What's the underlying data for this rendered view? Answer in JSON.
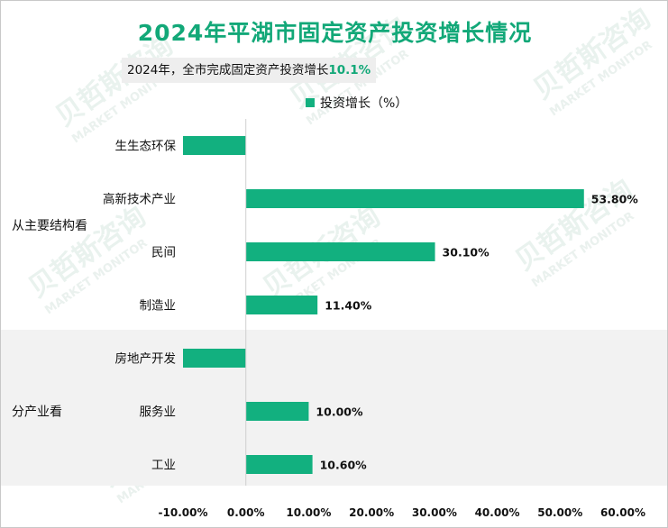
{
  "title": "2024年平湖市固定资产投资增长情况",
  "subtitle_prefix": "2024年，全市完成固定资产投资增长",
  "subtitle_value": "10.1%",
  "watermark": "贝哲斯咨询 MARKET MONITOR",
  "colors": {
    "bar": "#12b07f",
    "title": "#12a878",
    "band": "#f2f2f2"
  },
  "chart_data": {
    "type": "bar",
    "orientation": "horizontal",
    "legend": {
      "label": "投资增长（%）",
      "position": "top"
    },
    "groups": [
      {
        "name": "从主要结构看",
        "categories": [
          "生生态环保",
          "高新技术产业",
          "民间",
          "制造业"
        ]
      },
      {
        "name": "分产业看",
        "categories": [
          "房地产开发",
          "服务业",
          "工业"
        ]
      }
    ],
    "categories": [
      "生生态环保",
      "高新技术产业",
      "民间",
      "制造业",
      "房地产开发",
      "服务业",
      "工业"
    ],
    "values": [
      -10.0,
      53.8,
      30.1,
      11.4,
      -10.0,
      10.0,
      10.6
    ],
    "value_labels": [
      "",
      "53.80%",
      "30.10%",
      "11.40%",
      "",
      "10.00%",
      "10.60%"
    ],
    "xlim": [
      -10,
      60
    ],
    "xticks": [
      -10,
      0,
      10,
      20,
      30,
      40,
      50,
      60
    ],
    "xtick_labels": [
      "-10.00%",
      "0.00%",
      "10.00%",
      "20.00%",
      "30.00%",
      "40.00%",
      "50.00%",
      "60.00%"
    ]
  }
}
